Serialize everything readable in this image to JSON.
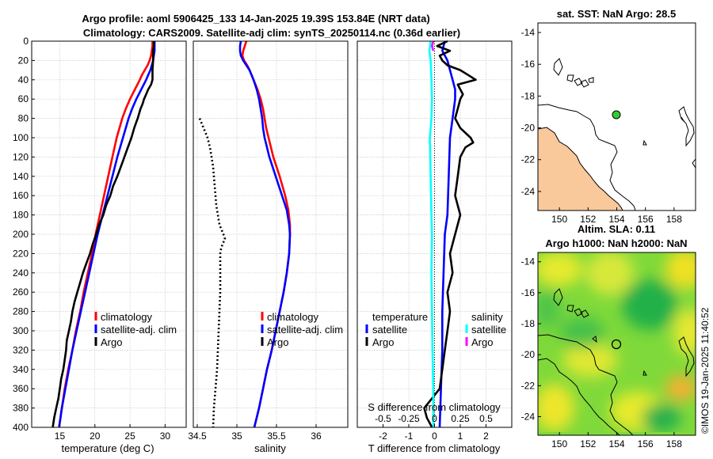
{
  "figure": {
    "title_line1": "Argo profile: aoml 5906425_133 14-Jan-2025 19.39S 153.84E (NRT data)",
    "title_line2": "Climatology: CARS2009. Satellite-adj clim: synTS_20250114.nc (0.36d earlier)",
    "credit": "©IMOS 19-Jan-2025 11:40:52"
  },
  "colors": {
    "climatology": "#ff0000",
    "satellite": "#0000ff",
    "argo": "#000000",
    "salinity_satellite": "#00ffff",
    "salinity_argo": "#ff00ff",
    "land": "#f9c89b"
  },
  "chart_data": [
    {
      "type": "line",
      "panel": "temperature",
      "xlabel": "temperature (deg C)",
      "ylabel": "depth",
      "xlim": [
        11,
        33
      ],
      "ylim": [
        0,
        400
      ],
      "y_reversed": true,
      "xticks": [
        15,
        20,
        25,
        30
      ],
      "yticks": [
        0,
        20,
        40,
        60,
        80,
        100,
        120,
        140,
        160,
        180,
        200,
        220,
        240,
        260,
        280,
        300,
        320,
        340,
        360,
        380,
        400
      ],
      "grid": true,
      "legend": [
        "climatology",
        "satellite-adj. clim",
        "Argo"
      ],
      "series": [
        {
          "name": "climatology",
          "depth": [
            0,
            5,
            10,
            15,
            20,
            25,
            30,
            35,
            40,
            50,
            60,
            70,
            80,
            100,
            120,
            140,
            160,
            180,
            200,
            220,
            240,
            260,
            280,
            300,
            320,
            340,
            360,
            380,
            400
          ],
          "values": [
            28.2,
            28.2,
            28.1,
            28.0,
            27.8,
            27.5,
            27.1,
            26.7,
            26.4,
            25.7,
            25.0,
            24.4,
            23.9,
            23.1,
            22.5,
            21.9,
            21.3,
            20.7,
            20.1,
            19.6,
            19.0,
            18.4,
            17.9,
            17.3,
            16.8,
            16.2,
            15.7,
            15.3,
            14.9
          ]
        },
        {
          "name": "satellite-adj. clim",
          "depth": [
            0,
            5,
            10,
            15,
            20,
            25,
            30,
            35,
            40,
            50,
            60,
            70,
            80,
            100,
            120,
            140,
            160,
            180,
            200,
            220,
            240,
            260,
            280,
            300,
            320,
            340,
            360,
            380,
            400
          ],
          "values": [
            28.5,
            28.5,
            28.5,
            28.4,
            28.3,
            28.1,
            27.9,
            27.6,
            27.3,
            26.6,
            25.9,
            25.3,
            24.8,
            24.0,
            23.2,
            22.5,
            21.8,
            21.1,
            20.4,
            19.8,
            19.2,
            18.6,
            18.0,
            17.4,
            16.8,
            16.3,
            15.8,
            15.3,
            14.9
          ]
        },
        {
          "name": "Argo",
          "depth": [
            0,
            5,
            10,
            20,
            30,
            40,
            45,
            50,
            55,
            60,
            65,
            70,
            80,
            90,
            100,
            110,
            120,
            130,
            140,
            150,
            160,
            170,
            180,
            190,
            200,
            210,
            220,
            230,
            240,
            250,
            260,
            270,
            280,
            290,
            300,
            310,
            320,
            330,
            340,
            350,
            360,
            370,
            380,
            390,
            400
          ],
          "values": [
            28.4,
            28.4,
            28.3,
            28.3,
            28.2,
            28.2,
            28.0,
            27.6,
            27.3,
            27.0,
            26.8,
            26.5,
            26.1,
            25.6,
            25.2,
            24.7,
            24.2,
            23.7,
            23.2,
            22.6,
            22.2,
            21.6,
            21.2,
            20.6,
            20.2,
            19.7,
            19.3,
            18.8,
            18.3,
            17.9,
            17.5,
            17.1,
            16.8,
            16.6,
            16.3,
            16.0,
            15.9,
            15.7,
            15.5,
            15.2,
            15.0,
            14.8,
            14.5,
            14.2,
            14.0
          ]
        }
      ]
    },
    {
      "type": "line",
      "panel": "salinity",
      "xlabel": "salinity",
      "xlim": [
        34.45,
        36.4
      ],
      "ylim": [
        0,
        400
      ],
      "y_reversed": true,
      "xticks": [
        34.5,
        35,
        35.5,
        36
      ],
      "xticklabels": [
        "34.5",
        "35",
        "35.5",
        "36"
      ],
      "grid": true,
      "legend": [
        "climatology",
        "satellite-adj. clim",
        "Argo"
      ],
      "series": [
        {
          "name": "climatology",
          "depth": [
            0,
            5,
            10,
            15,
            20,
            25,
            30,
            40,
            50,
            60,
            70,
            80,
            90,
            100,
            120,
            140,
            160,
            175,
            190,
            200,
            220,
            240,
            260,
            280,
            300,
            320,
            340,
            360,
            380,
            400
          ],
          "values": [
            35.12,
            35.1,
            35.08,
            35.07,
            35.09,
            35.13,
            35.16,
            35.21,
            35.26,
            35.3,
            35.33,
            35.35,
            35.37,
            35.4,
            35.46,
            35.54,
            35.61,
            35.65,
            35.67,
            35.67,
            35.66,
            35.63,
            35.59,
            35.54,
            35.49,
            35.44,
            35.38,
            35.33,
            35.28,
            35.22
          ]
        },
        {
          "name": "satellite-adj. clim",
          "depth": [
            0,
            5,
            10,
            15,
            20,
            25,
            30,
            40,
            50,
            60,
            70,
            80,
            90,
            100,
            120,
            140,
            160,
            175,
            190,
            200,
            220,
            240,
            260,
            280,
            300,
            320,
            340,
            360,
            380,
            400
          ],
          "values": [
            35.05,
            35.04,
            35.04,
            35.05,
            35.08,
            35.12,
            35.16,
            35.21,
            35.25,
            35.28,
            35.3,
            35.32,
            35.33,
            35.35,
            35.41,
            35.49,
            35.57,
            35.63,
            35.66,
            35.67,
            35.66,
            35.63,
            35.59,
            35.54,
            35.49,
            35.44,
            35.38,
            35.33,
            35.28,
            35.22
          ]
        },
        {
          "name": "Argo",
          "style": "dotted",
          "depth": [
            80,
            90,
            100,
            110,
            120,
            130,
            140,
            150,
            160,
            170,
            180,
            190,
            200,
            205,
            210,
            215,
            220,
            230,
            240,
            260,
            280,
            300,
            320,
            340,
            360,
            380,
            400
          ],
          "values": [
            34.53,
            34.58,
            34.63,
            34.66,
            34.68,
            34.7,
            34.71,
            34.72,
            34.73,
            34.74,
            34.76,
            34.78,
            34.83,
            34.85,
            34.82,
            34.8,
            34.79,
            34.79,
            34.79,
            34.79,
            34.78,
            34.77,
            34.76,
            34.75,
            34.73,
            34.71,
            34.7
          ]
        }
      ]
    },
    {
      "type": "line",
      "panel": "difference",
      "xlabel": "T difference from climatology",
      "secondary_xlabel": "S difference from climatology",
      "xlim": [
        -3,
        3
      ],
      "ylim": [
        0,
        400
      ],
      "y_reversed": true,
      "xticks": [
        -2,
        -1,
        0,
        1,
        2
      ],
      "xticklabels": [
        "-2",
        "-1",
        "0",
        "1",
        "2"
      ],
      "s_ticks": [
        "-0.5",
        "-0.25",
        "0",
        "0.25",
        "0.5"
      ],
      "s_tick_values": [
        -2,
        -1,
        0,
        1,
        2
      ],
      "zero_line": "dotted",
      "grid": true,
      "legend_temperature_title": "temperature",
      "legend_temperature": [
        "satellite",
        "Argo"
      ],
      "legend_salinity_title": "salinity",
      "legend_salinity": [
        "satellite",
        "Argo"
      ],
      "series": [
        {
          "name": "temperature satellite",
          "depth": [
            0,
            10,
            20,
            30,
            40,
            50,
            60,
            80,
            100,
            140,
            180,
            200,
            240,
            280,
            320,
            360,
            400
          ],
          "values": [
            0.4,
            0.3,
            0.5,
            0.6,
            0.7,
            0.8,
            0.8,
            0.7,
            0.6,
            0.55,
            0.5,
            0.4,
            0.35,
            0.3,
            0.3,
            0.25,
            0.2
          ]
        },
        {
          "name": "temperature Argo",
          "depth": [
            0,
            5,
            10,
            15,
            20,
            25,
            30,
            35,
            40,
            45,
            50,
            55,
            60,
            70,
            80,
            90,
            100,
            105,
            110,
            120,
            140,
            160,
            180,
            200,
            220,
            240,
            260,
            280,
            300,
            320,
            340,
            360,
            370,
            380,
            390,
            400
          ],
          "values": [
            0.5,
            0.1,
            0.6,
            0.2,
            0.3,
            0.5,
            1.0,
            1.3,
            1.6,
            0.9,
            1.0,
            1.1,
            1.0,
            0.9,
            0.8,
            1.0,
            1.4,
            1.5,
            1.2,
            1.0,
            0.9,
            0.8,
            1.0,
            0.8,
            0.6,
            0.7,
            0.5,
            0.6,
            0.5,
            0.4,
            0.3,
            0.2,
            -0.1,
            -0.4,
            -0.3,
            -0.1
          ]
        },
        {
          "name": "salinity satellite",
          "depth": [
            0,
            10,
            20,
            40,
            60,
            80,
            100,
            140,
            180,
            200,
            240,
            280,
            320,
            360,
            400
          ],
          "values": [
            -0.15,
            -0.2,
            -0.15,
            -0.12,
            -0.1,
            -0.12,
            -0.18,
            -0.15,
            -0.12,
            -0.1,
            -0.12,
            -0.1,
            -0.08,
            -0.05,
            -0.05
          ]
        },
        {
          "name": "salinity Argo",
          "depth": [
            0,
            5,
            10
          ],
          "values": [
            -0.05,
            -0.1,
            -0.05
          ]
        }
      ]
    },
    {
      "type": "heatmap",
      "panel": "sst_map",
      "title": "sat. SST: NaN Argo: 28.5",
      "xlim": [
        148.5,
        159.5
      ],
      "ylim": [
        -25.2,
        -13.4
      ],
      "xticks": [
        150,
        152,
        154,
        156,
        158
      ],
      "yticks": [
        -14,
        -16,
        -18,
        -20,
        -22,
        -24
      ],
      "argo_position": {
        "lon": 153.84,
        "lat": -19.39
      }
    },
    {
      "type": "heatmap",
      "panel": "sla_map",
      "title_line1": "Altim. SLA: 0.11",
      "title_line2": "Argo h1000: NaN h2000: NaN",
      "xlim": [
        148.5,
        159.5
      ],
      "ylim": [
        -25.2,
        -13.4
      ],
      "xticks": [
        150,
        152,
        154,
        156,
        158
      ],
      "yticks": [
        -14,
        -16,
        -18,
        -20,
        -22,
        -24
      ],
      "argo_position": {
        "lon": 153.84,
        "lat": -19.39
      }
    }
  ]
}
